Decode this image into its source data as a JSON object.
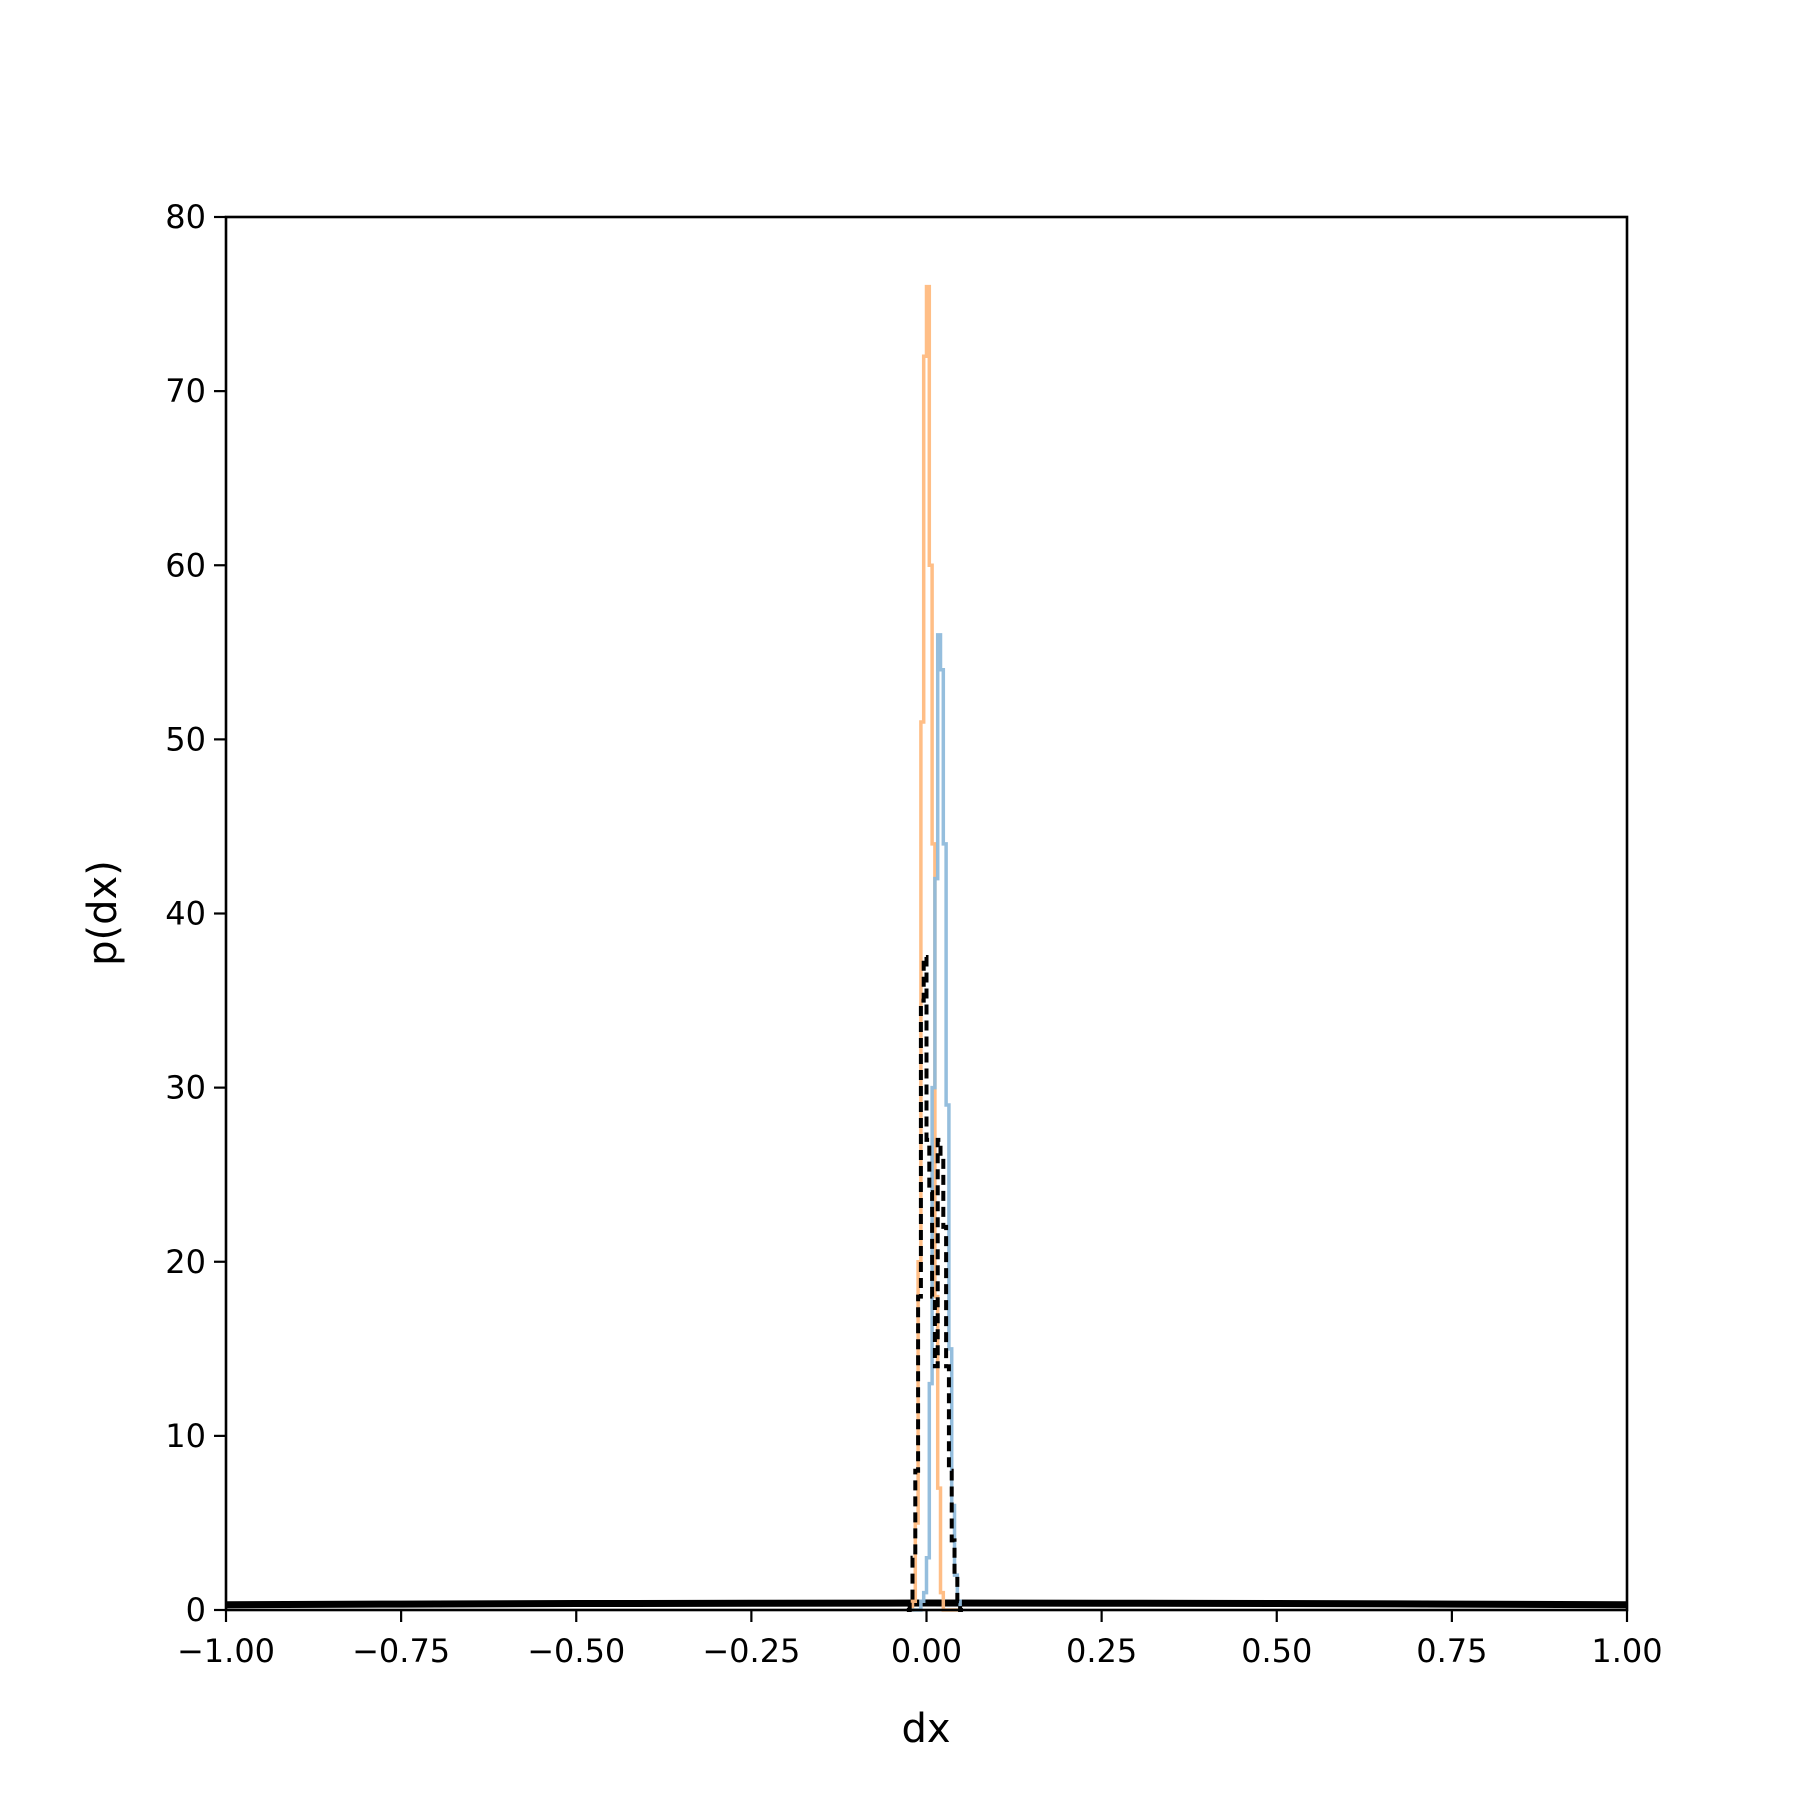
{
  "chart_data": {
    "type": "histogram-step",
    "title": "",
    "xlabel": "dx",
    "ylabel": "p(dx)",
    "xlim": [
      -1.0,
      1.0
    ],
    "ylim": [
      0,
      80
    ],
    "grid": false,
    "xticks": [
      "−1.00",
      "−0.75",
      "−0.50",
      "−0.25",
      "0.00",
      "0.25",
      "0.50",
      "0.75",
      "1.00"
    ],
    "xtick_values": [
      -1.0,
      -0.75,
      -0.5,
      -0.25,
      0.0,
      0.25,
      0.5,
      0.75,
      1.0
    ],
    "yticks": [
      "0",
      "10",
      "20",
      "30",
      "40",
      "50",
      "60",
      "70",
      "80"
    ],
    "ytick_values": [
      0,
      10,
      20,
      30,
      40,
      50,
      60,
      70,
      80
    ],
    "bin_edges": [
      -0.028,
      -0.024,
      -0.02,
      -0.016,
      -0.012,
      -0.008,
      -0.004,
      0.0,
      0.004,
      0.008,
      0.012,
      0.016,
      0.02,
      0.024,
      0.028,
      0.032,
      0.036,
      0.04,
      0.044,
      0.048,
      0.052
    ],
    "series": [
      {
        "color": "#ffbb80",
        "style": "solid",
        "values": [
          0,
          0,
          0.5,
          5,
          20,
          51,
          72,
          76,
          60,
          44,
          18,
          7,
          1,
          0,
          0,
          0,
          0,
          0,
          0,
          0
        ]
      },
      {
        "color": "#8fbbdb",
        "style": "solid",
        "values": [
          0,
          0,
          0,
          0,
          0,
          0.5,
          1,
          3,
          13,
          30,
          42,
          56,
          54,
          44,
          29,
          15,
          6,
          2,
          0.5,
          0
        ]
      },
      {
        "color": "#000000",
        "style": "dashed",
        "values": [
          0,
          0.5,
          3,
          8,
          18,
          35,
          37.5,
          27,
          24,
          18,
          14,
          27,
          26,
          22,
          14,
          8,
          4,
          2,
          0.5,
          0
        ]
      }
    ],
    "curve": {
      "color": "#000000",
      "style": "solid-thick",
      "x": [
        -1.0,
        -0.75,
        -0.5,
        -0.25,
        0.0,
        0.25,
        0.5,
        0.75,
        1.0
      ],
      "y": [
        0.3,
        0.34,
        0.37,
        0.39,
        0.4,
        0.39,
        0.37,
        0.34,
        0.3
      ]
    }
  }
}
